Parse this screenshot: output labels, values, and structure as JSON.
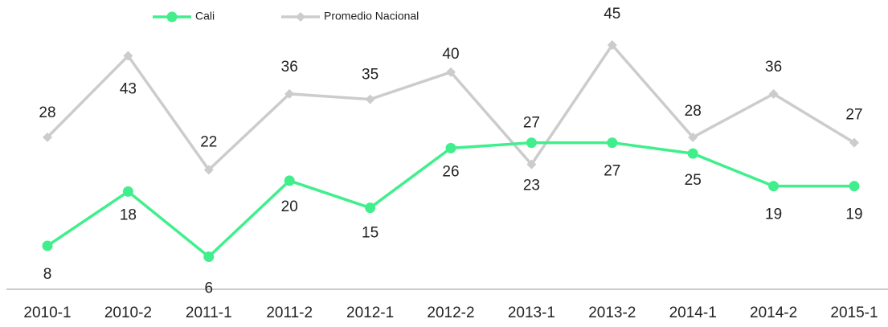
{
  "chart_data": {
    "type": "line",
    "categories": [
      "2010-1",
      "2010-2",
      "2011-1",
      "2011-2",
      "2012-1",
      "2012-2",
      "2013-1",
      "2013-2",
      "2014-1",
      "2014-2",
      "2015-1"
    ],
    "series": [
      {
        "name": "Cali",
        "color": "#40ef8c",
        "marker": "circle",
        "values": [
          8,
          18,
          6,
          20,
          15,
          26,
          27,
          27,
          25,
          19,
          19
        ]
      },
      {
        "name": "Promedio Nacional",
        "color": "#cccccc",
        "marker": "diamond",
        "values": [
          28,
          43,
          22,
          36,
          35,
          40,
          23,
          45,
          28,
          36,
          27
        ]
      }
    ],
    "ylim": [
      0,
      53
    ],
    "legend": "top"
  }
}
